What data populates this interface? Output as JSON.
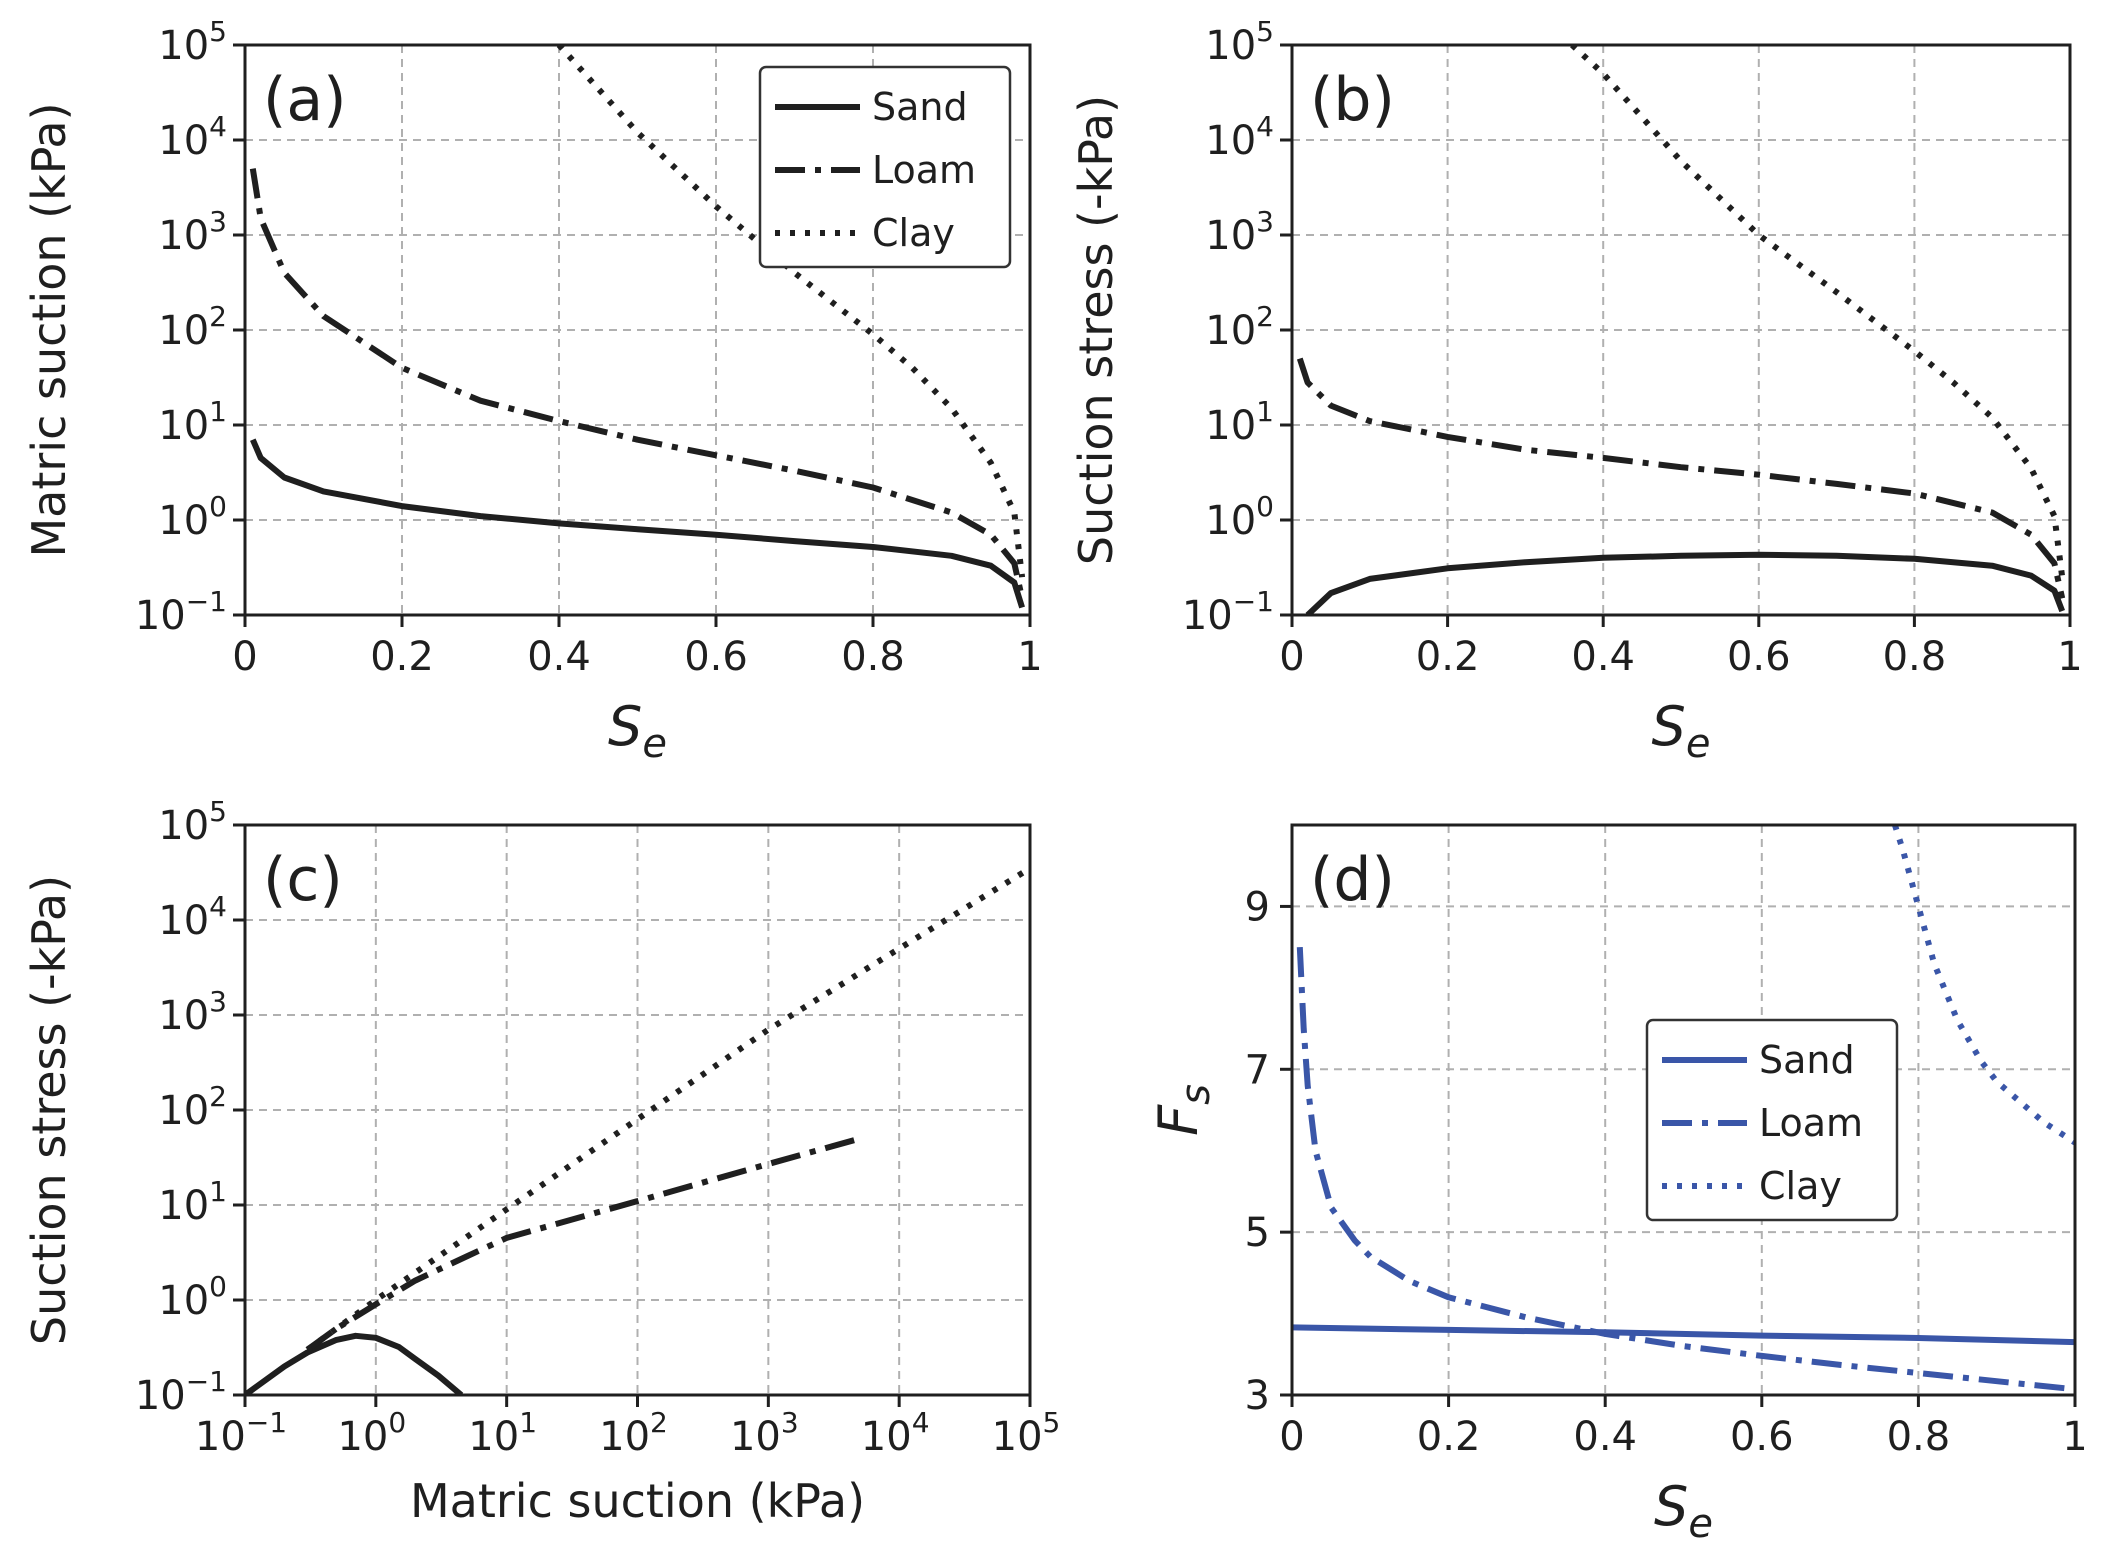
{
  "chart_data": [
    {
      "panel": "(a)",
      "type": "line",
      "xlabel": "S",
      "xlabel_sub": "e",
      "ylabel": "Matric suction (kPa)",
      "xlim": [
        0,
        1
      ],
      "ylim_exp": [
        -1,
        5
      ],
      "yscale": "log",
      "x_ticks": [
        "0",
        "0.2",
        "0.4",
        "0.6",
        "0.8",
        "1"
      ],
      "y_tick_exps": [
        "−1",
        "0",
        "1",
        "2",
        "3",
        "4",
        "5"
      ],
      "y_tick_base": "10",
      "legend": {
        "position": "upper-right",
        "entries": [
          "Sand",
          "Loam",
          "Clay"
        ]
      },
      "series": [
        {
          "name": "Sand",
          "style": "solid",
          "x": [
            0.01,
            0.02,
            0.05,
            0.1,
            0.2,
            0.3,
            0.4,
            0.5,
            0.6,
            0.7,
            0.8,
            0.9,
            0.95,
            0.98,
            0.99
          ],
          "y": [
            7,
            4.5,
            2.8,
            2.0,
            1.4,
            1.1,
            0.92,
            0.8,
            0.7,
            0.6,
            0.52,
            0.42,
            0.33,
            0.22,
            0.12
          ]
        },
        {
          "name": "Loam",
          "style": "dashdot",
          "x": [
            0.01,
            0.02,
            0.05,
            0.1,
            0.2,
            0.3,
            0.4,
            0.5,
            0.6,
            0.7,
            0.8,
            0.9,
            0.95,
            0.98,
            0.99
          ],
          "y": [
            5000,
            1500,
            400,
            140,
            40,
            18,
            11,
            7,
            4.8,
            3.3,
            2.2,
            1.2,
            0.7,
            0.35,
            0.15
          ]
        },
        {
          "name": "Clay",
          "style": "dotted",
          "x": [
            0.4,
            0.5,
            0.6,
            0.7,
            0.8,
            0.85,
            0.9,
            0.95,
            0.98,
            0.99
          ],
          "y": [
            100000,
            12000,
            2000,
            400,
            90,
            40,
            15,
            4,
            1.2,
            0.25
          ]
        }
      ]
    },
    {
      "panel": "(b)",
      "type": "line",
      "xlabel": "S",
      "xlabel_sub": "e",
      "ylabel": "Suction stress (-kPa)",
      "xlim": [
        0,
        1
      ],
      "ylim_exp": [
        -1,
        5
      ],
      "yscale": "log",
      "x_ticks": [
        "0",
        "0.2",
        "0.4",
        "0.6",
        "0.8",
        "1"
      ],
      "y_tick_exps": [
        "−1",
        "0",
        "1",
        "2",
        "3",
        "4",
        "5"
      ],
      "y_tick_base": "10",
      "series": [
        {
          "name": "Sand",
          "style": "solid",
          "x": [
            0.02,
            0.05,
            0.1,
            0.2,
            0.3,
            0.4,
            0.5,
            0.6,
            0.7,
            0.8,
            0.9,
            0.95,
            0.98,
            0.99
          ],
          "y": [
            0.1,
            0.17,
            0.24,
            0.31,
            0.36,
            0.4,
            0.42,
            0.43,
            0.42,
            0.39,
            0.33,
            0.26,
            0.18,
            0.11
          ]
        },
        {
          "name": "Loam",
          "style": "dashdot",
          "x": [
            0.01,
            0.02,
            0.05,
            0.1,
            0.2,
            0.3,
            0.4,
            0.5,
            0.6,
            0.7,
            0.8,
            0.9,
            0.95,
            0.98,
            0.99
          ],
          "y": [
            50,
            28,
            16,
            11,
            7.5,
            5.5,
            4.5,
            3.6,
            3.0,
            2.4,
            1.9,
            1.2,
            0.7,
            0.35,
            0.15
          ]
        },
        {
          "name": "Clay",
          "style": "dotted",
          "x": [
            0.36,
            0.4,
            0.5,
            0.6,
            0.7,
            0.8,
            0.85,
            0.9,
            0.95,
            0.98,
            0.99
          ],
          "y": [
            100000,
            50000,
            6000,
            1000,
            250,
            60,
            28,
            12,
            3.5,
            1.1,
            0.25
          ]
        }
      ]
    },
    {
      "panel": "(c)",
      "type": "line",
      "xlabel": "Matric suction (kPa)",
      "ylabel": "Suction stress (-kPa)",
      "xscale": "log",
      "yscale": "log",
      "xlim_exp": [
        -1,
        5
      ],
      "ylim_exp": [
        -1,
        5
      ],
      "x_tick_exps": [
        "−1",
        "0",
        "1",
        "2",
        "3",
        "4",
        "5"
      ],
      "y_tick_exps": [
        "−1",
        "0",
        "1",
        "2",
        "3",
        "4",
        "5"
      ],
      "tick_base": "10",
      "series": [
        {
          "name": "Sand",
          "style": "solid",
          "x": [
            0.1,
            0.2,
            0.3,
            0.5,
            0.7,
            1.0,
            1.5,
            2,
            3,
            4.5
          ],
          "y": [
            0.1,
            0.2,
            0.28,
            0.38,
            0.42,
            0.4,
            0.32,
            0.24,
            0.16,
            0.1
          ]
        },
        {
          "name": "Loam",
          "style": "dashdot",
          "x": [
            0.3,
            0.5,
            1,
            2,
            5,
            10,
            100,
            1000,
            5000
          ],
          "y": [
            0.3,
            0.5,
            0.9,
            1.6,
            2.9,
            4.5,
            11,
            27,
            50
          ]
        },
        {
          "name": "Clay",
          "style": "dotted",
          "x": [
            0.3,
            1,
            10,
            100,
            1000,
            10000,
            100000
          ],
          "y": [
            0.3,
            1,
            9,
            80,
            700,
            5000,
            35000
          ]
        }
      ]
    },
    {
      "panel": "(d)",
      "type": "line",
      "xlabel": "S",
      "xlabel_sub": "e",
      "ylabel": "F",
      "ylabel_sub": "s",
      "xlim": [
        0,
        1
      ],
      "ylim": [
        3,
        10
      ],
      "x_ticks": [
        "0",
        "0.2",
        "0.4",
        "0.6",
        "0.8",
        "1"
      ],
      "y_ticks": [
        "3",
        "5",
        "7",
        "9"
      ],
      "color": "#3a56a8",
      "legend": {
        "position": "center-right",
        "entries": [
          "Sand",
          "Loam",
          "Clay"
        ]
      },
      "series": [
        {
          "name": "Sand",
          "style": "solid",
          "x": [
            0,
            0.2,
            0.4,
            0.6,
            0.8,
            1.0
          ],
          "y": [
            3.83,
            3.8,
            3.77,
            3.73,
            3.7,
            3.65
          ]
        },
        {
          "name": "Loam",
          "style": "dashdot",
          "x": [
            0.01,
            0.015,
            0.02,
            0.03,
            0.05,
            0.08,
            0.1,
            0.15,
            0.2,
            0.3,
            0.4,
            0.5,
            0.6,
            0.7,
            0.8,
            0.9,
            1.0
          ],
          "y": [
            8.5,
            7.5,
            6.8,
            6.0,
            5.3,
            4.9,
            4.7,
            4.4,
            4.2,
            3.95,
            3.75,
            3.6,
            3.48,
            3.37,
            3.27,
            3.17,
            3.07
          ]
        },
        {
          "name": "Clay",
          "style": "dotted",
          "x": [
            0.77,
            0.78,
            0.8,
            0.82,
            0.85,
            0.88,
            0.9,
            0.93,
            0.96,
            1.0
          ],
          "y": [
            10.0,
            9.7,
            9.0,
            8.3,
            7.6,
            7.1,
            6.85,
            6.6,
            6.35,
            6.1
          ]
        }
      ]
    }
  ]
}
